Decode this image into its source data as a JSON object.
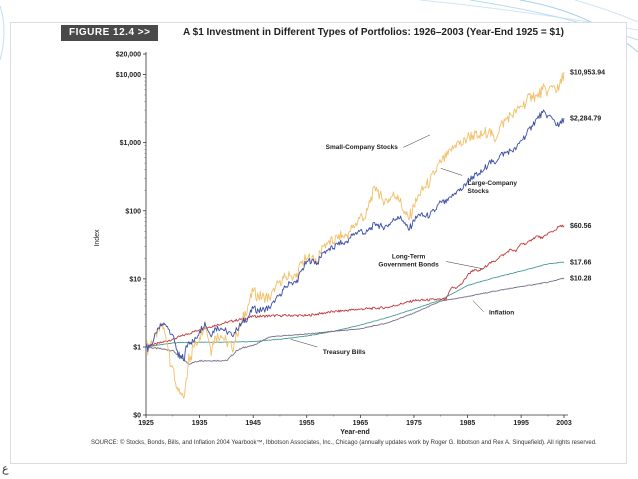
{
  "slide": {
    "page_number": "ع"
  },
  "figure": {
    "tag": "FIGURE 12.4 >>",
    "title": "A $1 Investment in Different Types of Portfolios: 1926–2003 (Year-End 1925 = $1)",
    "source": "SOURCE: © Stocks, Bonds, Bills, and Inflation 2004 Yearbook™, Ibbotson Associates, Inc., Chicago (annually updates work by Roger G. Ibbotson and Rex A. Sinquefield). All rights reserved."
  },
  "chart_data": {
    "type": "line",
    "xlabel": "Year-end",
    "ylabel": "Index",
    "x_ticks": [
      1925,
      1935,
      1945,
      1955,
      1965,
      1975,
      1985,
      1995,
      2003
    ],
    "y_ticks": [
      {
        "value": 0,
        "label": "$0"
      },
      {
        "value": 1,
        "label": "$1"
      },
      {
        "value": 10,
        "label": "$10"
      },
      {
        "value": 100,
        "label": "$100"
      },
      {
        "value": 1000,
        "label": "$1,000"
      },
      {
        "value": 10000,
        "label": "$10,000"
      },
      {
        "value": 20000,
        "label": "$20,000"
      }
    ],
    "y_scale": "log",
    "xlim": [
      1925,
      2003
    ],
    "grid": false,
    "series": [
      {
        "name": "Small-Company Stocks",
        "color": "#f2c06a",
        "end_label": "$10,953.94",
        "points": [
          [
            1925,
            1
          ],
          [
            1927,
            1.4
          ],
          [
            1928,
            2.2
          ],
          [
            1929,
            1.1
          ],
          [
            1930,
            0.7
          ],
          [
            1931,
            0.35
          ],
          [
            1932,
            0.25
          ],
          [
            1933,
            0.9
          ],
          [
            1934,
            1.0
          ],
          [
            1935,
            1.4
          ],
          [
            1936,
            2.4
          ],
          [
            1937,
            1.0
          ],
          [
            1938,
            1.4
          ],
          [
            1939,
            1.5
          ],
          [
            1940,
            1.2
          ],
          [
            1941,
            1.0
          ],
          [
            1942,
            1.5
          ],
          [
            1943,
            2.5
          ],
          [
            1944,
            4.0
          ],
          [
            1945,
            6.5
          ],
          [
            1946,
            5.5
          ],
          [
            1947,
            5.5
          ],
          [
            1948,
            5.3
          ],
          [
            1949,
            6.5
          ],
          [
            1950,
            9.5
          ],
          [
            1951,
            10.5
          ],
          [
            1952,
            11
          ],
          [
            1953,
            10.5
          ],
          [
            1954,
            17
          ],
          [
            1955,
            20
          ],
          [
            1956,
            21
          ],
          [
            1957,
            18
          ],
          [
            1958,
            30
          ],
          [
            1959,
            35
          ],
          [
            1960,
            34
          ],
          [
            1961,
            45
          ],
          [
            1962,
            40
          ],
          [
            1963,
            50
          ],
          [
            1964,
            60
          ],
          [
            1965,
            85
          ],
          [
            1966,
            80
          ],
          [
            1967,
            160
          ],
          [
            1968,
            220
          ],
          [
            1969,
            150
          ],
          [
            1970,
            140
          ],
          [
            1971,
            165
          ],
          [
            1972,
            170
          ],
          [
            1973,
            100
          ],
          [
            1974,
            75
          ],
          [
            1975,
            115
          ],
          [
            1976,
            170
          ],
          [
            1977,
            220
          ],
          [
            1978,
            270
          ],
          [
            1979,
            380
          ],
          [
            1980,
            520
          ],
          [
            1981,
            600
          ],
          [
            1982,
            750
          ],
          [
            1983,
            1000
          ],
          [
            1984,
            930
          ],
          [
            1985,
            1200
          ],
          [
            1986,
            1300
          ],
          [
            1987,
            1200
          ],
          [
            1988,
            1350
          ],
          [
            1989,
            1500
          ],
          [
            1990,
            1080
          ],
          [
            1991,
            1700
          ],
          [
            1992,
            2100
          ],
          [
            1993,
            2600
          ],
          [
            1994,
            2700
          ],
          [
            1995,
            3400
          ],
          [
            1996,
            4000
          ],
          [
            1997,
            5000
          ],
          [
            1998,
            4700
          ],
          [
            1999,
            6000
          ],
          [
            2000,
            5700
          ],
          [
            2001,
            6800
          ],
          [
            2002,
            5800
          ],
          [
            2003,
            10953.94
          ]
        ]
      },
      {
        "name": "Large-Company Stocks",
        "color": "#3c4fa8",
        "end_label": "$2,284.79",
        "points": [
          [
            1925,
            1
          ],
          [
            1926,
            1.1
          ],
          [
            1927,
            1.6
          ],
          [
            1928,
            2.2
          ],
          [
            1929,
            2.0
          ],
          [
            1930,
            1.5
          ],
          [
            1931,
            0.85
          ],
          [
            1932,
            0.8
          ],
          [
            1933,
            1.2
          ],
          [
            1934,
            1.2
          ],
          [
            1935,
            1.7
          ],
          [
            1936,
            2.3
          ],
          [
            1937,
            1.5
          ],
          [
            1938,
            1.9
          ],
          [
            1939,
            1.9
          ],
          [
            1940,
            1.7
          ],
          [
            1941,
            1.5
          ],
          [
            1942,
            1.8
          ],
          [
            1943,
            2.3
          ],
          [
            1944,
            2.7
          ],
          [
            1945,
            3.7
          ],
          [
            1946,
            3.4
          ],
          [
            1947,
            3.6
          ],
          [
            1948,
            3.8
          ],
          [
            1949,
            4.5
          ],
          [
            1950,
            6.0
          ],
          [
            1951,
            7.5
          ],
          [
            1952,
            8.8
          ],
          [
            1953,
            8.7
          ],
          [
            1954,
            13
          ],
          [
            1955,
            18
          ],
          [
            1956,
            19
          ],
          [
            1957,
            17
          ],
          [
            1958,
            24
          ],
          [
            1959,
            27
          ],
          [
            1960,
            28
          ],
          [
            1961,
            35
          ],
          [
            1962,
            32
          ],
          [
            1963,
            40
          ],
          [
            1964,
            46
          ],
          [
            1965,
            52
          ],
          [
            1966,
            46
          ],
          [
            1967,
            57
          ],
          [
            1968,
            64
          ],
          [
            1969,
            58
          ],
          [
            1970,
            60
          ],
          [
            1971,
            70
          ],
          [
            1972,
            83
          ],
          [
            1973,
            71
          ],
          [
            1974,
            52
          ],
          [
            1975,
            71
          ],
          [
            1976,
            88
          ],
          [
            1977,
            82
          ],
          [
            1978,
            87
          ],
          [
            1979,
            103
          ],
          [
            1980,
            136
          ],
          [
            1981,
            130
          ],
          [
            1982,
            157
          ],
          [
            1983,
            193
          ],
          [
            1984,
            205
          ],
          [
            1985,
            270
          ],
          [
            1986,
            320
          ],
          [
            1987,
            337
          ],
          [
            1988,
            393
          ],
          [
            1989,
            517
          ],
          [
            1990,
            500
          ],
          [
            1991,
            652
          ],
          [
            1992,
            702
          ],
          [
            1993,
            772
          ],
          [
            1994,
            782
          ],
          [
            1995,
            1076
          ],
          [
            1996,
            1323
          ],
          [
            1997,
            1764
          ],
          [
            1998,
            2268
          ],
          [
            1999,
            2746
          ],
          [
            2000,
            2496
          ],
          [
            2001,
            2199
          ],
          [
            2002,
            1713
          ],
          [
            2003,
            2284.79
          ]
        ]
      },
      {
        "name": "Long-Term Government Bonds",
        "color": "#c23b3b",
        "end_label": "$60.56",
        "points": [
          [
            1925,
            1
          ],
          [
            1930,
            1.3
          ],
          [
            1935,
            1.8
          ],
          [
            1940,
            2.3
          ],
          [
            1945,
            2.8
          ],
          [
            1950,
            2.9
          ],
          [
            1955,
            2.9
          ],
          [
            1960,
            3.3
          ],
          [
            1965,
            3.6
          ],
          [
            1970,
            3.8
          ],
          [
            1975,
            4.8
          ],
          [
            1980,
            5.0
          ],
          [
            1981,
            5.0
          ],
          [
            1982,
            7.4
          ],
          [
            1983,
            7.4
          ],
          [
            1984,
            8.6
          ],
          [
            1985,
            11.3
          ],
          [
            1986,
            13.5
          ],
          [
            1987,
            13.0
          ],
          [
            1988,
            14.3
          ],
          [
            1989,
            16.9
          ],
          [
            1990,
            17.9
          ],
          [
            1991,
            21.3
          ],
          [
            1992,
            23.1
          ],
          [
            1993,
            27.3
          ],
          [
            1994,
            25.1
          ],
          [
            1995,
            33.1
          ],
          [
            1996,
            32.7
          ],
          [
            1997,
            37.9
          ],
          [
            1998,
            42.8
          ],
          [
            1999,
            39.3
          ],
          [
            2000,
            47.0
          ],
          [
            2001,
            49.5
          ],
          [
            2002,
            58.0
          ],
          [
            2003,
            60.56
          ]
        ]
      },
      {
        "name": "Treasury Bills",
        "color": "#4a9c9c",
        "end_label": "$17.66",
        "points": [
          [
            1925,
            1
          ],
          [
            1930,
            1.15
          ],
          [
            1935,
            1.18
          ],
          [
            1940,
            1.18
          ],
          [
            1945,
            1.2
          ],
          [
            1950,
            1.3
          ],
          [
            1955,
            1.45
          ],
          [
            1960,
            1.7
          ],
          [
            1965,
            2.1
          ],
          [
            1970,
            2.7
          ],
          [
            1975,
            3.6
          ],
          [
            1980,
            4.9
          ],
          [
            1985,
            8.0
          ],
          [
            1990,
            10.4
          ],
          [
            1995,
            13.0
          ],
          [
            2000,
            16.6
          ],
          [
            2003,
            17.66
          ]
        ]
      },
      {
        "name": "Inflation",
        "color": "#7a6f8a",
        "end_label": "$10.28",
        "points": [
          [
            1925,
            1
          ],
          [
            1930,
            0.95
          ],
          [
            1933,
            0.75
          ],
          [
            1935,
            0.8
          ],
          [
            1940,
            0.8
          ],
          [
            1942,
            0.95
          ],
          [
            1945,
            1.05
          ],
          [
            1948,
            1.4
          ],
          [
            1950,
            1.45
          ],
          [
            1955,
            1.55
          ],
          [
            1960,
            1.7
          ],
          [
            1965,
            1.85
          ],
          [
            1970,
            2.25
          ],
          [
            1975,
            3.15
          ],
          [
            1980,
            4.7
          ],
          [
            1985,
            5.5
          ],
          [
            1990,
            6.6
          ],
          [
            1995,
            7.7
          ],
          [
            2000,
            8.9
          ],
          [
            2003,
            10.28
          ]
        ]
      }
    ],
    "annotations": [
      {
        "text": "Small-Company Stocks",
        "x": 1972,
        "y": 800
      },
      {
        "text": "Large-Company Stocks",
        "x": 1985,
        "y": 240
      },
      {
        "text": "Long-Term Government Bonds",
        "x": 1974,
        "y": 20
      },
      {
        "text": "Treasury Bills",
        "x": 1958,
        "y": 0.9
      },
      {
        "text": "Inflation",
        "x": 1989,
        "y": 3.0
      }
    ]
  }
}
